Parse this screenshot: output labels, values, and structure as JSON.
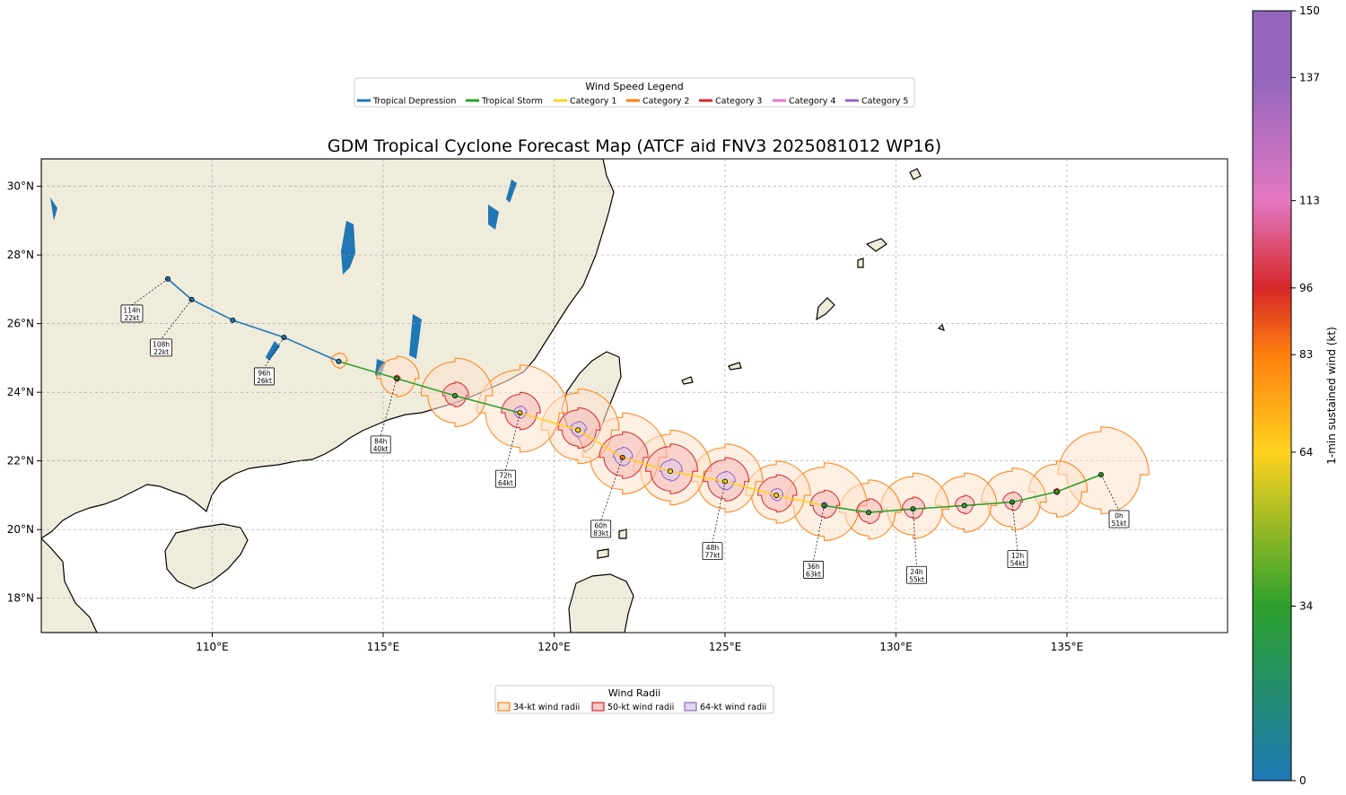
{
  "title": "GDM Tropical Cyclone Forecast Map (ATCF aid FNV3 2025081012 WP16)",
  "legend_speed": {
    "title": "Wind Speed Legend",
    "items": [
      {
        "label": "Tropical Depression",
        "color": "#1f77b4"
      },
      {
        "label": "Tropical Storm",
        "color": "#2ca02c"
      },
      {
        "label": "Category 1",
        "color": "#ffd21f"
      },
      {
        "label": "Category 2",
        "color": "#ff7f0e"
      },
      {
        "label": "Category 3",
        "color": "#d62728"
      },
      {
        "label": "Category 4",
        "color": "#e377c2"
      },
      {
        "label": "Category 5",
        "color": "#9467bd"
      }
    ]
  },
  "legend_radii": {
    "title": "Wind Radii",
    "items": [
      {
        "label": "34-kt wind radii",
        "stroke": "#ff7f0e",
        "fill": "#fde5cf"
      },
      {
        "label": "50-kt wind radii",
        "stroke": "#d62728",
        "fill": "#f6c9c9"
      },
      {
        "label": "64-kt wind radii",
        "stroke": "#9467bd",
        "fill": "#e3d6ee"
      }
    ]
  },
  "colorbar": {
    "label": "1-min sustained wind (kt)",
    "min": 0,
    "max": 150,
    "ticks": [
      0,
      34,
      64,
      83,
      96,
      113,
      137,
      150
    ]
  },
  "map": {
    "lon_range": [
      105,
      139.7
    ],
    "lat_range": [
      17,
      30.8
    ],
    "lon_ticks": [
      {
        "v": 110,
        "label": "110°E"
      },
      {
        "v": 115,
        "label": "115°E"
      },
      {
        "v": 120,
        "label": "120°E"
      },
      {
        "v": 125,
        "label": "125°E"
      },
      {
        "v": 130,
        "label": "130°E"
      },
      {
        "v": 135,
        "label": "135°E"
      }
    ],
    "lat_ticks": [
      {
        "v": 18,
        "label": "18°N"
      },
      {
        "v": 20,
        "label": "20°N"
      },
      {
        "v": 22,
        "label": "22°N"
      },
      {
        "v": 24,
        "label": "24°N"
      },
      {
        "v": 26,
        "label": "26°N"
      },
      {
        "v": 28,
        "label": "28°N"
      },
      {
        "v": 30,
        "label": "30°N"
      }
    ],
    "land_color": "#efecdc",
    "water_color": "#ffffff",
    "lake_color": "#1f77b4"
  },
  "track": [
    {
      "lon": 136.0,
      "lat": 21.6,
      "wind": 51,
      "label": "0h\n51kt",
      "r34": 1.4,
      "r50": 0,
      "r64": 0
    },
    {
      "lon": 134.7,
      "lat": 21.1,
      "wind": 52,
      "r34": 0.9,
      "r50": 0.1,
      "r64": 0
    },
    {
      "lon": 133.4,
      "lat": 20.8,
      "wind": 54,
      "label": "12h\n54kt",
      "r34": 1.0,
      "r50": 0.3,
      "r64": 0
    },
    {
      "lon": 132.0,
      "lat": 20.7,
      "wind": 54,
      "r34": 0.95,
      "r50": 0.3,
      "r64": 0
    },
    {
      "lon": 130.5,
      "lat": 20.6,
      "wind": 55,
      "label": "24h\n55kt",
      "r34": 1.05,
      "r50": 0.35,
      "r64": 0
    },
    {
      "lon": 129.2,
      "lat": 20.5,
      "wind": 57,
      "r34": 0.95,
      "r50": 0.4,
      "r64": 0
    },
    {
      "lon": 127.9,
      "lat": 20.7,
      "wind": 63,
      "label": "36h\n63kt",
      "r34": 1.25,
      "r50": 0.45,
      "r64": 0.1
    },
    {
      "lon": 126.5,
      "lat": 21.0,
      "wind": 70,
      "r34": 1.0,
      "r50": 0.6,
      "r64": 0.2
    },
    {
      "lon": 125.0,
      "lat": 21.4,
      "wind": 77,
      "label": "48h\n77kt",
      "r34": 1.1,
      "r50": 0.7,
      "r64": 0.3
    },
    {
      "lon": 123.4,
      "lat": 21.7,
      "wind": 80,
      "r34": 1.2,
      "r50": 0.8,
      "r64": 0.35
    },
    {
      "lon": 122.0,
      "lat": 22.1,
      "wind": 83,
      "label": "60h\n83kt",
      "r34": 1.3,
      "r50": 0.75,
      "r64": 0.3
    },
    {
      "lon": 120.7,
      "lat": 22.9,
      "wind": 70,
      "r34": 1.2,
      "r50": 0.65,
      "r64": 0.25
    },
    {
      "lon": 119.0,
      "lat": 23.4,
      "wind": 64,
      "label": "72h\n64kt",
      "r34": 1.4,
      "r50": 0.6,
      "r64": 0.2
    },
    {
      "lon": 117.1,
      "lat": 23.9,
      "wind": 55,
      "r34": 1.1,
      "r50": 0.4,
      "r64": 0
    },
    {
      "lon": 115.4,
      "lat": 24.4,
      "wind": 40,
      "label": "84h\n40kt",
      "r34": 0.65,
      "r50": 0.1,
      "r64": 0
    },
    {
      "lon": 113.7,
      "lat": 24.9,
      "wind": 33,
      "r34": 0.25,
      "r50": 0,
      "r64": 0
    },
    {
      "lon": 112.1,
      "lat": 25.6,
      "wind": 26,
      "label": "96h\n26kt",
      "r34": 0,
      "r50": 0,
      "r64": 0
    },
    {
      "lon": 110.6,
      "lat": 26.1,
      "wind": 24,
      "r34": 0,
      "r50": 0,
      "r64": 0
    },
    {
      "lon": 109.4,
      "lat": 26.7,
      "wind": 22,
      "label": "108h\n22kt",
      "r34": 0,
      "r50": 0,
      "r64": 0
    },
    {
      "lon": 108.7,
      "lat": 27.3,
      "wind": 22,
      "label": "114h\n22kt",
      "r34": 0,
      "r50": 0,
      "r64": 0
    }
  ]
}
